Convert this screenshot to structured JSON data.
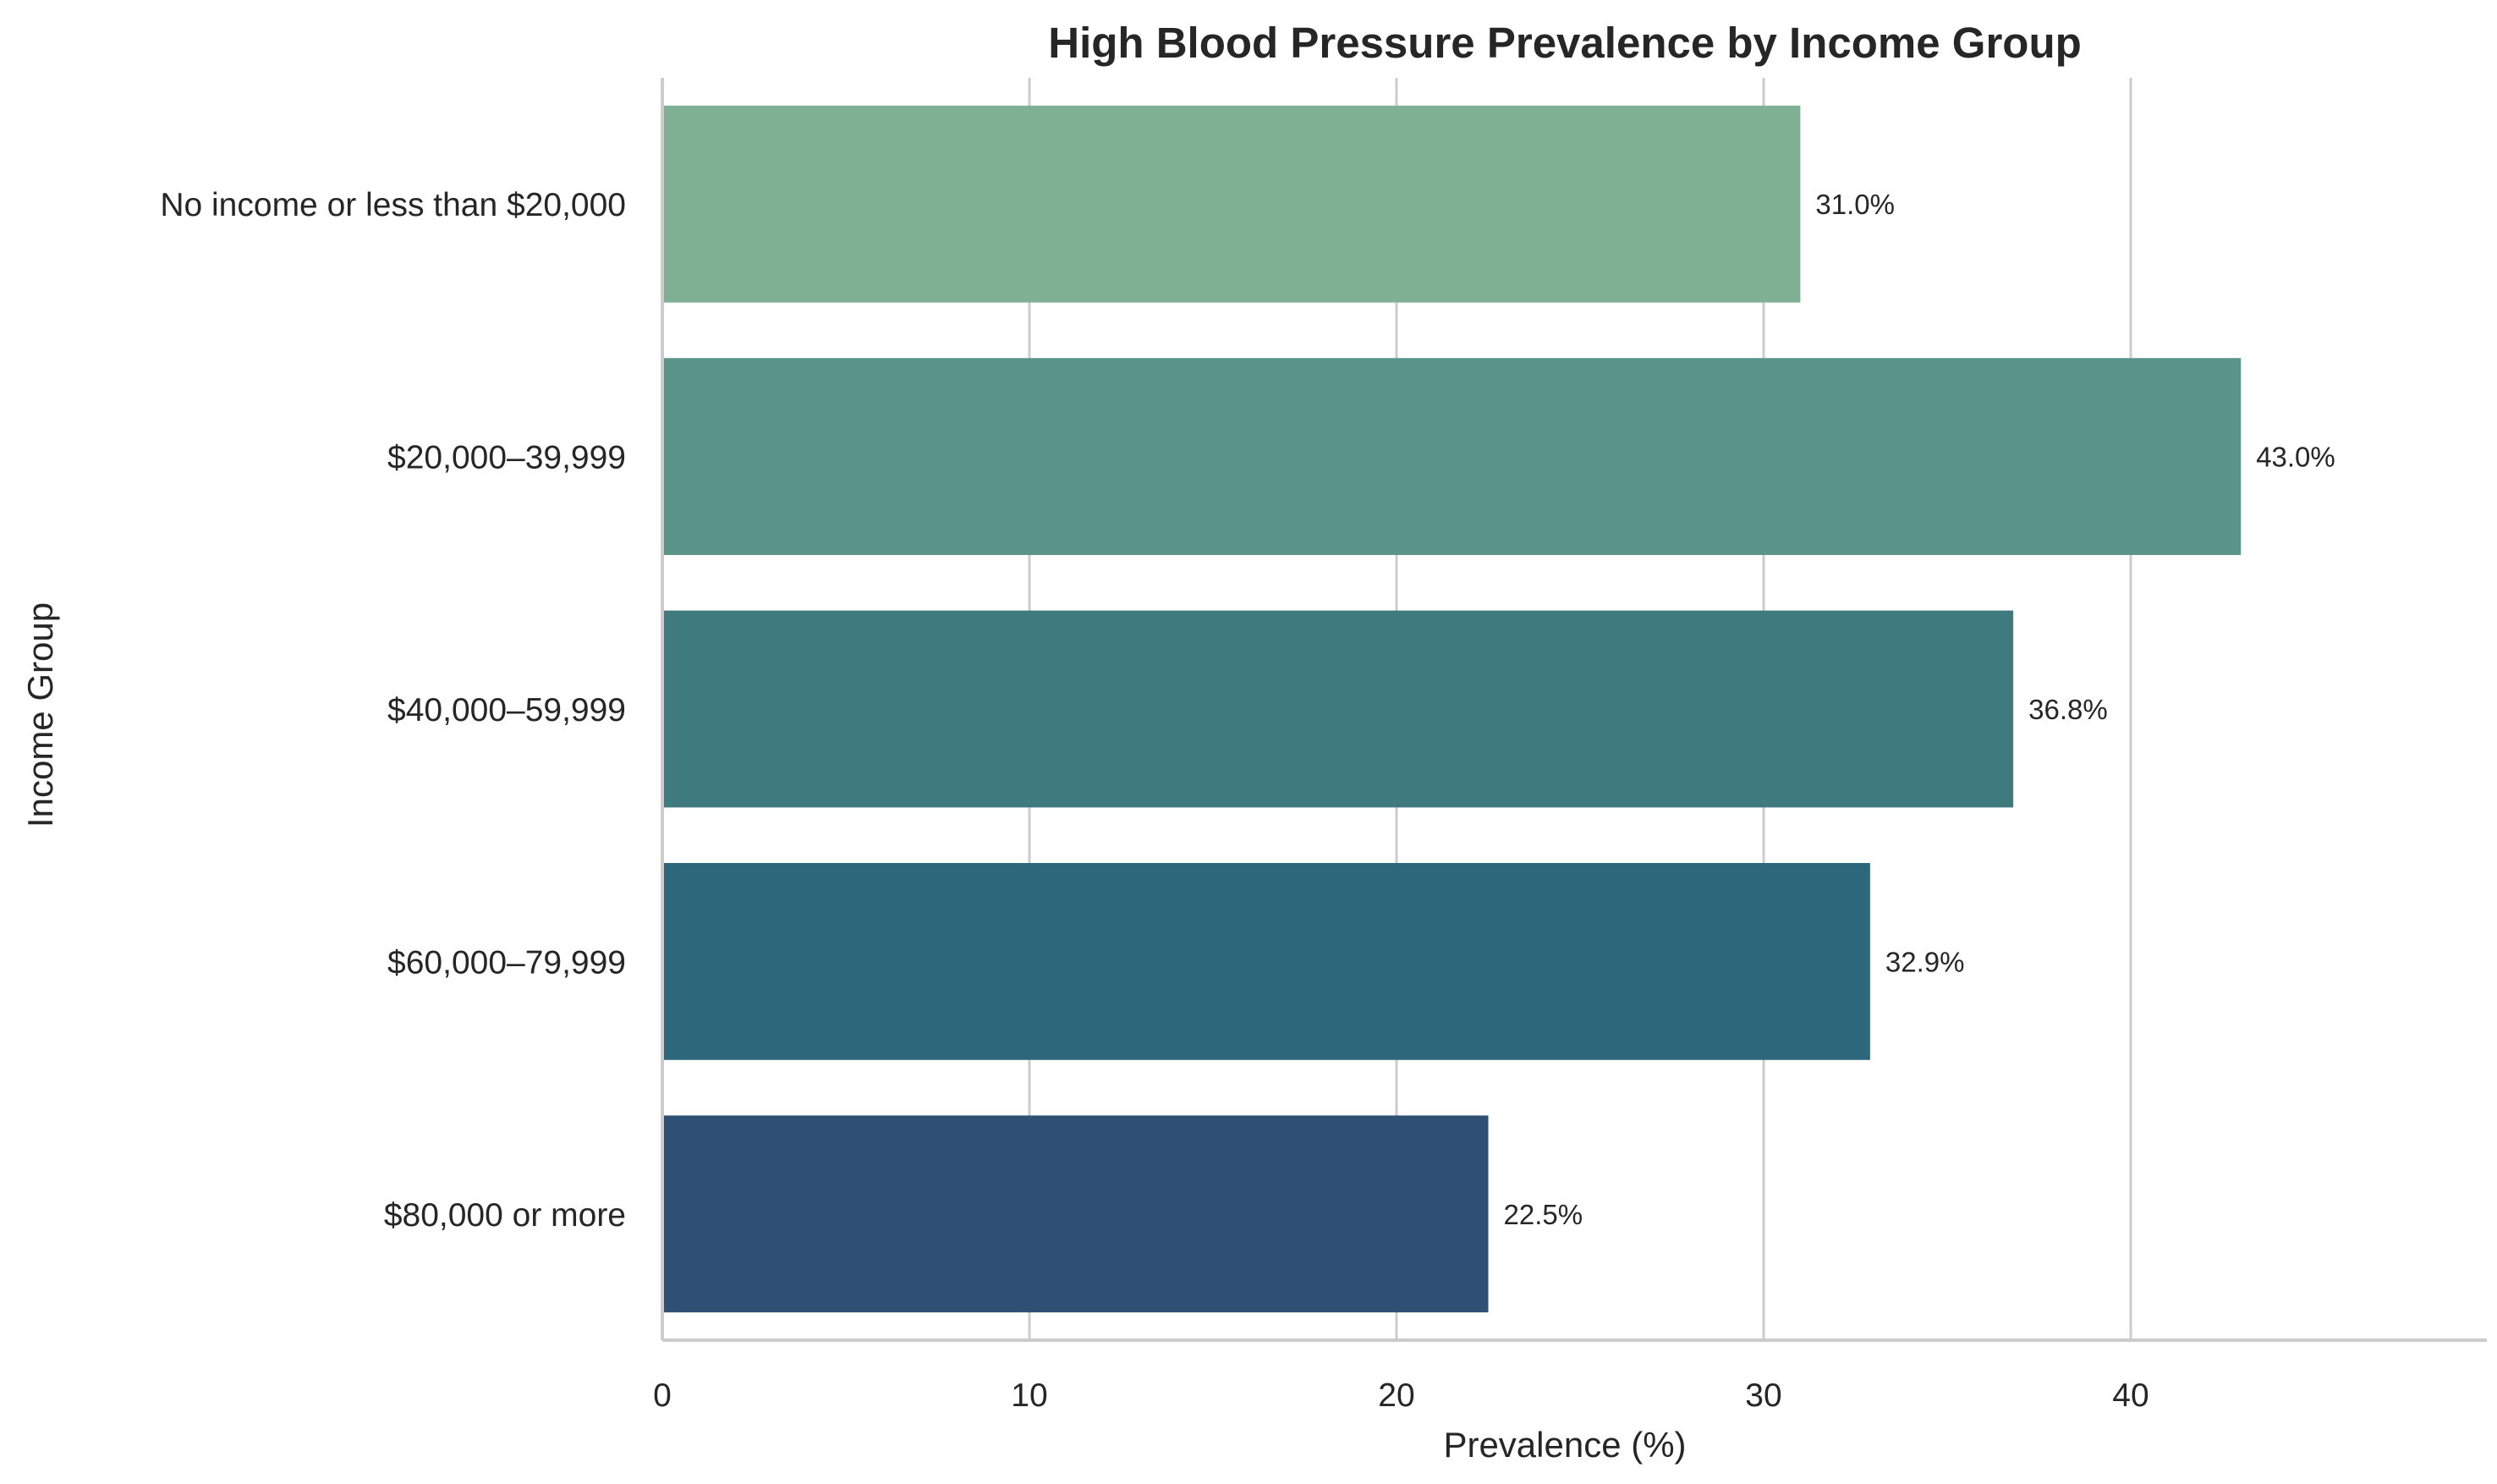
{
  "chart_data": {
    "type": "bar",
    "orientation": "horizontal",
    "title": "High Blood Pressure Prevalence by Income Group",
    "xlabel": "Prevalence (%)",
    "ylabel": "Income Group",
    "xlim": [
      0,
      49.5
    ],
    "xticks": [
      0,
      10,
      20,
      30,
      40
    ],
    "grid": true,
    "categories": [
      "No income or less than $20,000",
      "$20,000–39,999",
      "$40,000–59,999",
      "$60,000–79,999",
      "$80,000 or more"
    ],
    "values": [
      31.0,
      43.0,
      36.8,
      32.9,
      22.5
    ],
    "value_labels": [
      "31.0%",
      "43.0%",
      "36.8%",
      "32.9%",
      "22.5%"
    ],
    "colors": [
      "#7fb093",
      "#5b9489",
      "#3f7a7f",
      "#2d677c",
      "#2f5075"
    ]
  }
}
